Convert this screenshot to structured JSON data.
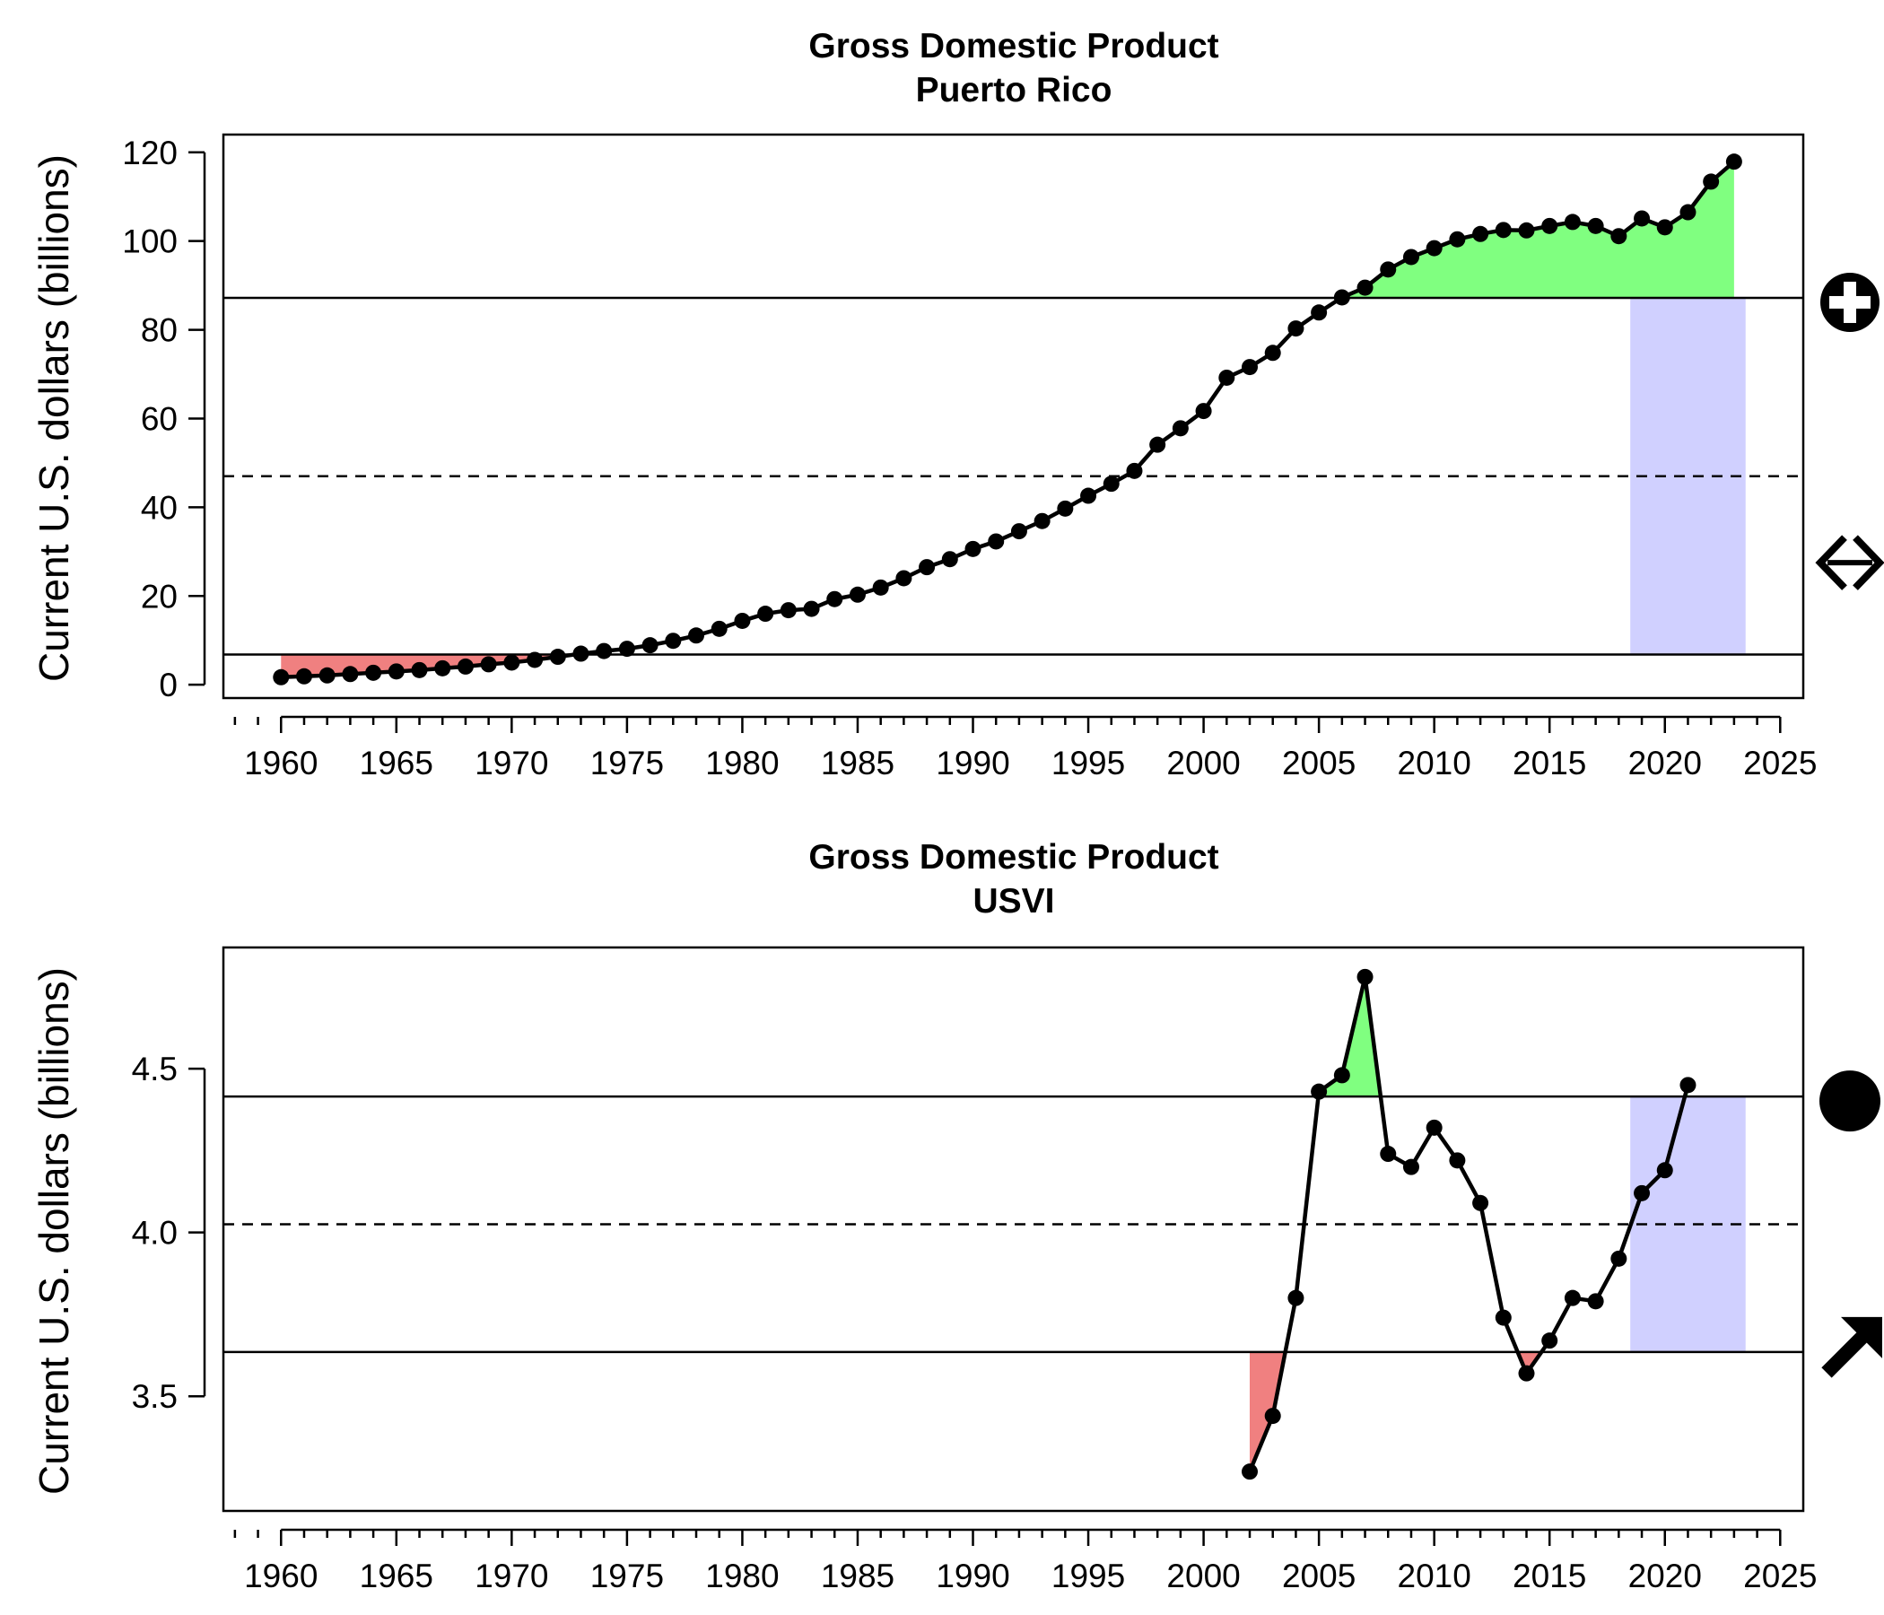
{
  "chart_data": [
    {
      "type": "line",
      "title": "Gross Domestic Product",
      "subtitle": "Puerto Rico",
      "ylabel": "Current U.S. dollars (billions)",
      "xlabel": "",
      "xlim": [
        1957.5,
        2026
      ],
      "ylim": [
        -3,
        124
      ],
      "xticks": [
        "1960",
        "1965",
        "1970",
        "1975",
        "1980",
        "1985",
        "1990",
        "1995",
        "2000",
        "2005",
        "2010",
        "2015",
        "2020",
        "2025"
      ],
      "yticks": [
        "0",
        "20",
        "40",
        "60",
        "80",
        "100",
        "120"
      ],
      "grid": false,
      "legend": "none",
      "mean": 47,
      "upper_sd": 87.2,
      "lower_sd": 6.8,
      "recent_window": [
        2018.5,
        2023.5
      ],
      "trend_symbol": "circle-plus-icon",
      "recent_symbol": "double-arrow-horizontal-icon",
      "colors": {
        "above": "#80ff80",
        "below": "#f08080",
        "recent": "#d0d0ff"
      },
      "x": [
        1960,
        1961,
        1962,
        1963,
        1964,
        1965,
        1966,
        1967,
        1968,
        1969,
        1970,
        1971,
        1972,
        1973,
        1974,
        1975,
        1976,
        1977,
        1978,
        1979,
        1980,
        1981,
        1982,
        1983,
        1984,
        1985,
        1986,
        1987,
        1988,
        1989,
        1990,
        1991,
        1992,
        1993,
        1994,
        1995,
        1996,
        1997,
        1998,
        1999,
        2000,
        2001,
        2002,
        2003,
        2004,
        2005,
        2006,
        2007,
        2008,
        2009,
        2010,
        2011,
        2012,
        2013,
        2014,
        2015,
        2016,
        2017,
        2018,
        2019,
        2020,
        2021,
        2022,
        2023
      ],
      "values": [
        1.7,
        1.9,
        2.1,
        2.4,
        2.7,
        3.0,
        3.3,
        3.7,
        4.1,
        4.6,
        5.0,
        5.6,
        6.3,
        7.0,
        7.6,
        8.1,
        8.9,
        9.9,
        11.1,
        12.6,
        14.4,
        16.0,
        16.8,
        17.1,
        19.3,
        20.3,
        21.9,
        24.0,
        26.5,
        28.3,
        30.6,
        32.3,
        34.6,
        36.9,
        39.7,
        42.6,
        45.3,
        48.2,
        54.1,
        57.8,
        61.7,
        69.2,
        71.6,
        74.8,
        80.3,
        83.9,
        87.3,
        89.5,
        93.6,
        96.4,
        98.4,
        100.4,
        101.6,
        102.5,
        102.4,
        103.4,
        104.3,
        103.4,
        101.1,
        105.1,
        103.1,
        106.5,
        113.4,
        117.9
      ]
    },
    {
      "type": "line",
      "title": "Gross Domestic Product",
      "subtitle": "USVI",
      "ylabel": "Current U.S. dollars (billions)",
      "xlabel": "",
      "xlim": [
        1957.5,
        2026
      ],
      "ylim": [
        3.15,
        4.87
      ],
      "xticks": [
        "1960",
        "1965",
        "1970",
        "1975",
        "1980",
        "1985",
        "1990",
        "1995",
        "2000",
        "2005",
        "2010",
        "2015",
        "2020",
        "2025"
      ],
      "yticks": [
        "3.5",
        "4.0",
        "4.5"
      ],
      "grid": false,
      "legend": "none",
      "mean": 4.025,
      "upper_sd": 4.415,
      "lower_sd": 3.635,
      "recent_window": [
        2018.5,
        2023.5
      ],
      "trend_symbol": "filled-circle-icon",
      "recent_symbol": "arrow-up-right-icon",
      "colors": {
        "above": "#80ff80",
        "below": "#f08080",
        "recent": "#d0d0ff"
      },
      "x": [
        2002,
        2003,
        2004,
        2005,
        2006,
        2007,
        2008,
        2009,
        2010,
        2011,
        2012,
        2013,
        2014,
        2015,
        2016,
        2017,
        2018,
        2019,
        2020,
        2021
      ],
      "values": [
        3.27,
        3.44,
        3.8,
        4.43,
        4.48,
        4.78,
        4.24,
        4.2,
        4.32,
        4.22,
        4.09,
        3.74,
        3.57,
        3.67,
        3.8,
        3.79,
        3.92,
        4.12,
        4.19,
        4.45
      ]
    }
  ]
}
